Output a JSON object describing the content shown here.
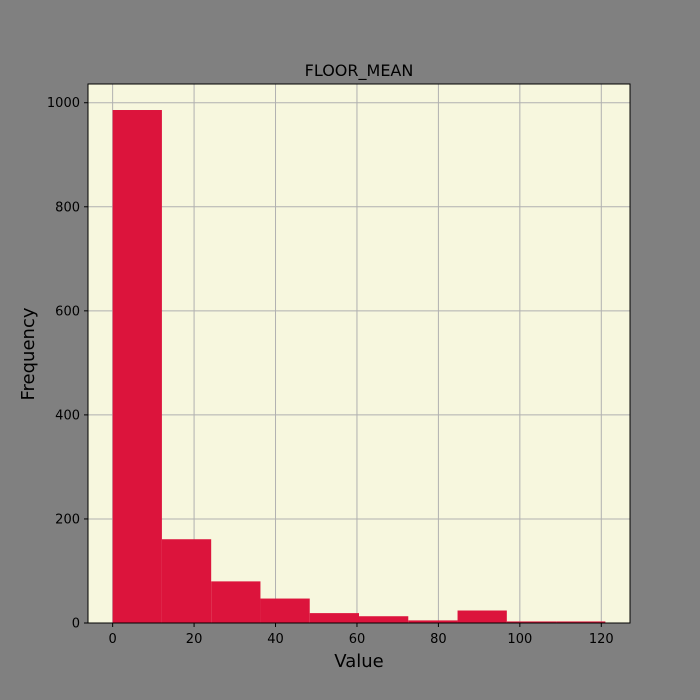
{
  "colors": {
    "figure_bg": "#808080",
    "plot_bg": "#f7f7de",
    "bar": "#dc143c",
    "grid": "#b0b0b0",
    "text": "#000000"
  },
  "chart_data": {
    "type": "bar",
    "title": "FLOOR_MEAN",
    "xlabel": "Value",
    "ylabel": "Frequency",
    "xlim": [
      -6.05,
      127.05
    ],
    "ylim": [
      0,
      1036
    ],
    "grid": true,
    "legend": "none",
    "x_ticks": [
      0,
      20,
      40,
      60,
      80,
      100,
      120
    ],
    "y_ticks": [
      0,
      200,
      400,
      600,
      800,
      1000
    ],
    "bins": [
      {
        "start": 0.0,
        "end": 12.1,
        "count": 986
      },
      {
        "start": 12.1,
        "end": 24.2,
        "count": 161
      },
      {
        "start": 24.2,
        "end": 36.3,
        "count": 80
      },
      {
        "start": 36.3,
        "end": 48.4,
        "count": 47
      },
      {
        "start": 48.4,
        "end": 60.5,
        "count": 19
      },
      {
        "start": 60.5,
        "end": 72.6,
        "count": 13
      },
      {
        "start": 72.6,
        "end": 84.7,
        "count": 5
      },
      {
        "start": 84.7,
        "end": 96.8,
        "count": 24
      },
      {
        "start": 96.8,
        "end": 108.9,
        "count": 3
      },
      {
        "start": 108.9,
        "end": 121.0,
        "count": 3
      }
    ]
  }
}
